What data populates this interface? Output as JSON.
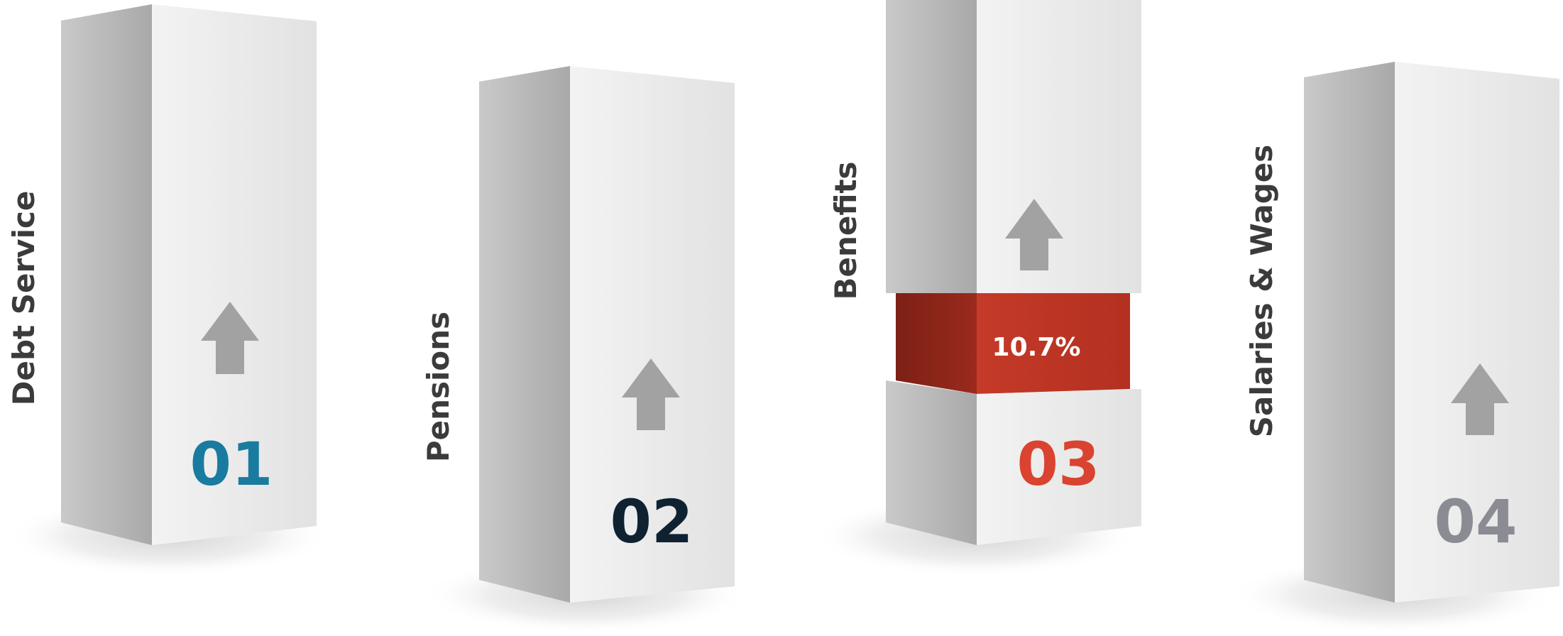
{
  "pillars": [
    {
      "label": "Debt Service",
      "number": "01",
      "number_color": "#1a7ba0"
    },
    {
      "label": "Pensions",
      "number": "02",
      "number_color": "#0f2232"
    },
    {
      "label": "Benefits",
      "number": "03",
      "number_color": "#d9432f",
      "highlight": "10.7%"
    },
    {
      "label": "Salaries & Wages",
      "number": "04",
      "number_color": "#8b8c93"
    }
  ],
  "colors": {
    "face_left": "#b7b7b7",
    "face_front": "#e6e6e6",
    "arrow": "#a2a2a2",
    "highlight_band": "#c7402c"
  }
}
